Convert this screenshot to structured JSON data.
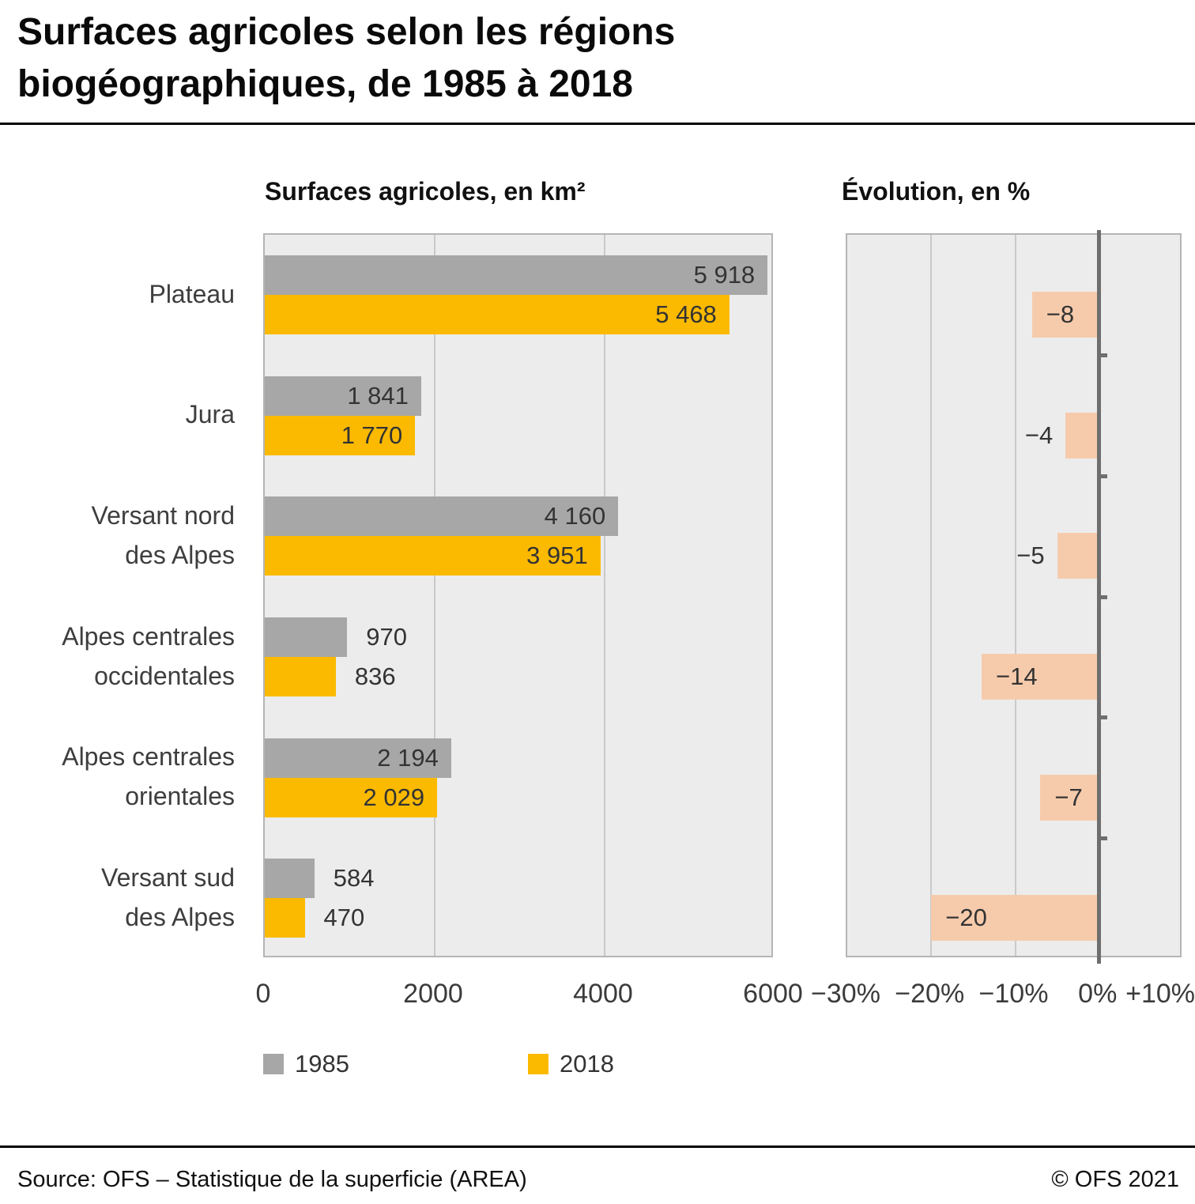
{
  "title": {
    "line1": "Surfaces agricoles selon les régions",
    "line2": "biogéographiques, de 1985 à 2018"
  },
  "legend": [
    {
      "label": "1985",
      "color": "#a7a7a7"
    },
    {
      "label": "2018",
      "color": "#fbba00"
    }
  ],
  "footer": {
    "source": "Source: OFS – Statistique de la superficie (AREA)",
    "copyright": "© OFS 2021"
  },
  "chart_data": [
    {
      "type": "bar",
      "orientation": "horizontal",
      "title": "Surfaces agricoles, en km²",
      "categories": [
        "Plateau",
        "Jura",
        "Versant nord\ndes Alpes",
        "Alpes centrales\noccidentales",
        "Alpes centrales\norientales",
        "Versant sud\ndes Alpes"
      ],
      "series": [
        {
          "name": "1985",
          "color": "#a7a7a7",
          "values": [
            5918,
            1841,
            4160,
            970,
            2194,
            584
          ],
          "labels": [
            "5 918",
            "1 841",
            "4 160",
            "970",
            "2 194",
            "584"
          ]
        },
        {
          "name": "2018",
          "color": "#fbba00",
          "values": [
            5468,
            1770,
            3951,
            836,
            2029,
            470
          ],
          "labels": [
            "5 468",
            "1 770",
            "3 951",
            "836",
            "2 029",
            "470"
          ]
        }
      ],
      "xlim": [
        0,
        6000
      ],
      "xticks": [
        0,
        2000,
        4000,
        6000
      ],
      "xtick_labels": [
        "0",
        "2000",
        "4000",
        "6000"
      ],
      "grid": true,
      "legend_position": "bottom"
    },
    {
      "type": "bar",
      "orientation": "horizontal",
      "title": "Évolution, en %",
      "categories": [
        "Plateau",
        "Jura",
        "Versant nord\ndes Alpes",
        "Alpes centrales\noccidentales",
        "Alpes centrales\norientales",
        "Versant sud\ndes Alpes"
      ],
      "values": [
        -8,
        -4,
        -5,
        -14,
        -7,
        -20
      ],
      "labels": [
        "−8",
        "−4",
        "−5",
        "−14",
        "−7",
        "−20"
      ],
      "color": "#f6cbac",
      "xlim": [
        -30,
        10
      ],
      "xticks": [
        -30,
        -20,
        -10,
        0,
        10
      ],
      "xtick_labels": [
        "−30%",
        "−20%",
        "−10%",
        "0%",
        "+10%"
      ],
      "grid": true
    }
  ]
}
